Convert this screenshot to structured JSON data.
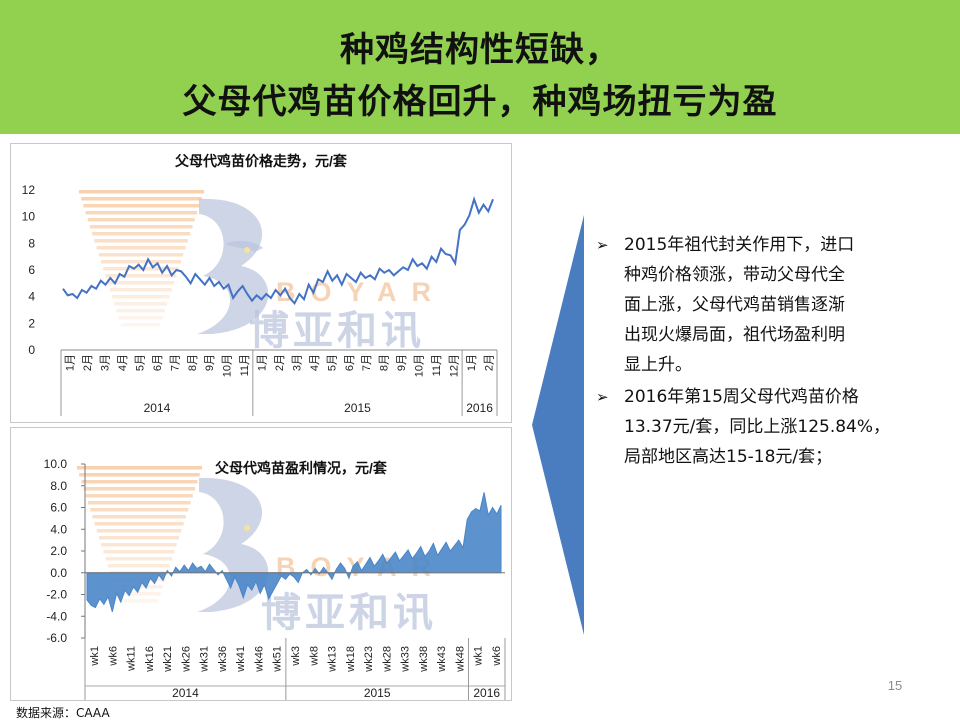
{
  "header": {
    "title_line1": "种鸡结构性短缺，",
    "title_line2": "父母代鸡苗价格回升，种鸡场扭亏为盈"
  },
  "watermark": {
    "brand_cn": "博亚和讯",
    "brand_en": "BOYAR"
  },
  "chart_data": [
    {
      "type": "line",
      "title": "父母代鸡苗价格走势，元/套",
      "xlabel": "",
      "ylabel": "",
      "ylim": [
        0,
        12
      ],
      "yticks": [
        "12",
        "10",
        "8",
        "6",
        "4",
        "2",
        "0"
      ],
      "x_month_labels": [
        "1月",
        "2月",
        "3月",
        "4月",
        "5月",
        "6月",
        "7月",
        "8月",
        "9月",
        "10月",
        "11月",
        "1月",
        "2月",
        "3月",
        "4月",
        "5月",
        "6月",
        "7月",
        "8月",
        "9月",
        "10月",
        "11月",
        "12月",
        "1月",
        "2月"
      ],
      "x_year_labels": [
        "2014",
        "2015",
        "2016"
      ],
      "grid": false,
      "color": "#4472c4",
      "series": [
        {
          "values": [
            4.6,
            4.1,
            4.2,
            3.9,
            4.5,
            4.3,
            4.8,
            4.6,
            5.2,
            4.9,
            5.4,
            5.0,
            5.7,
            5.5,
            6.3,
            6.1,
            6.4,
            6.0,
            6.8,
            6.2,
            6.5,
            5.8,
            6.3,
            5.6,
            6.0,
            5.9,
            5.5,
            5.0,
            5.7,
            5.3,
            4.9,
            5.4,
            4.8,
            5.1,
            4.6,
            4.9,
            3.9,
            4.4,
            4.8,
            4.2,
            3.7,
            4.1,
            3.8,
            4.2,
            3.9,
            4.5,
            4.1,
            4.6,
            3.9,
            3.5,
            4.2,
            3.8,
            4.9,
            4.3,
            5.3,
            5.1,
            5.9,
            5.2,
            5.6,
            4.9,
            5.7,
            5.4,
            5.1,
            5.8,
            5.4,
            5.6,
            5.3,
            6.1,
            5.8,
            6.0,
            5.6,
            5.9,
            6.2,
            6.0,
            6.8,
            6.3,
            6.5,
            6.1,
            7.0,
            6.6,
            7.6,
            7.2,
            7.1,
            6.5,
            9.0,
            9.4,
            10.1,
            11.3,
            10.3,
            10.9,
            10.4,
            11.3
          ]
        }
      ]
    },
    {
      "type": "area",
      "title": "父母代鸡苗盈利情况，元/套",
      "xlabel": "",
      "ylabel": "",
      "ylim": [
        -6,
        10
      ],
      "yticks": [
        "10.0",
        "8.0",
        "6.0",
        "4.0",
        "2.0",
        "0.0",
        "-2.0",
        "-4.0",
        "-6.0"
      ],
      "x_week_labels": [
        "wk1",
        "wk6",
        "wk11",
        "wk16",
        "wk21",
        "wk26",
        "wk31",
        "wk36",
        "wk41",
        "wk46",
        "wk51",
        "wk3",
        "wk8",
        "wk13",
        "wk18",
        "wk23",
        "wk28",
        "wk33",
        "wk38",
        "wk43",
        "wk48",
        "wk1",
        "wk6"
      ],
      "x_year_labels": [
        "2014",
        "2015",
        "2016"
      ],
      "grid": false,
      "color": "#4a86c8",
      "series": [
        {
          "values": [
            -2.5,
            -3.0,
            -3.2,
            -2.4,
            -2.9,
            -2.2,
            -3.6,
            -1.9,
            -2.7,
            -1.6,
            -2.1,
            -1.3,
            -1.8,
            -0.9,
            -1.4,
            -0.5,
            -1.0,
            -0.2,
            -0.7,
            0.2,
            -0.3,
            0.5,
            0.1,
            0.7,
            0.2,
            0.9,
            0.4,
            0.6,
            0.1,
            0.8,
            0.3,
            -0.2,
            0.2,
            -0.6,
            -1.4,
            -0.4,
            -1.2,
            -2.3,
            -1.1,
            -1.6,
            -0.8,
            -1.9,
            -1.1,
            -2.4,
            -1.7,
            -1.0,
            -0.3,
            -0.6,
            -0.1,
            -0.4,
            -0.9,
            0.0,
            0.3,
            -0.2,
            0.4,
            -0.1,
            0.5,
            0.0,
            -0.6,
            0.3,
            0.9,
            0.4,
            -0.5,
            0.6,
            1.0,
            0.2,
            0.8,
            1.4,
            0.6,
            1.1,
            1.7,
            0.9,
            1.4,
            1.9,
            1.1,
            1.6,
            2.1,
            1.3,
            1.8,
            2.4,
            1.5,
            2.0,
            2.7,
            1.6,
            2.2,
            2.8,
            2.0,
            2.5,
            3.0,
            2.3,
            4.9,
            5.6,
            5.9,
            5.7,
            7.4,
            5.3,
            6.0,
            5.4,
            6.2
          ]
        }
      ]
    }
  ],
  "bullets": [
    {
      "icon": "arrow-bullet-icon",
      "text_lines": [
        "2015年祖代封关作用下，进口",
        "种鸡价格领涨，带动父母代全",
        "面上涨，父母代鸡苗销售逐渐",
        "出现火爆局面，祖代场盈利明",
        "显上升。"
      ]
    },
    {
      "icon": "arrow-bullet-icon",
      "text_lines": [
        "2016年第15周父母代鸡苗价格",
        "13.37元/套，同比上涨125.84%，",
        "局部地区高达15-18元/套；"
      ]
    }
  ],
  "footer": {
    "page_number": "15",
    "source": "数据来源：CAAA"
  },
  "colors": {
    "title_bar": "#92d050",
    "line": "#4472c4",
    "area": "#4a86c8",
    "arrow": "#4a7cc0"
  }
}
